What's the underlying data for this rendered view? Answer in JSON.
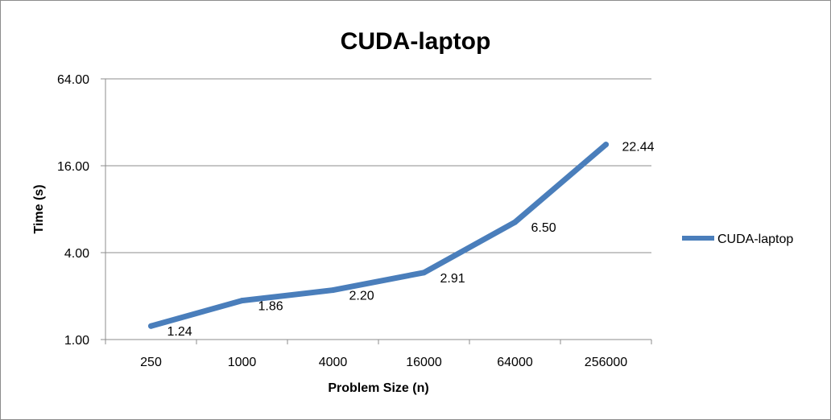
{
  "chart_data": {
    "type": "line",
    "title": "CUDA-laptop",
    "xlabel": "Problem Size (n)",
    "ylabel": "Time (s)",
    "categories": [
      "250",
      "1000",
      "4000",
      "16000",
      "64000",
      "256000"
    ],
    "series": [
      {
        "name": "CUDA-laptop",
        "values": [
          1.24,
          1.86,
          2.2,
          2.91,
          6.5,
          22.44
        ],
        "labels": [
          "1.24",
          "1.86",
          "2.20",
          "2.91",
          "6.50",
          "22.44"
        ]
      }
    ],
    "y_scale": "log4",
    "ylim": [
      1,
      64
    ],
    "y_ticks": [
      1,
      4,
      16,
      64
    ],
    "y_tick_labels": [
      "1.00",
      "4.00",
      "16.00",
      "64.00"
    ],
    "grid": true,
    "legend": "right",
    "colors": {
      "series": "#4a7ebb",
      "grid": "#8c8c8c",
      "axis": "#8c8c8c",
      "frame": "#8c8c8c"
    }
  }
}
